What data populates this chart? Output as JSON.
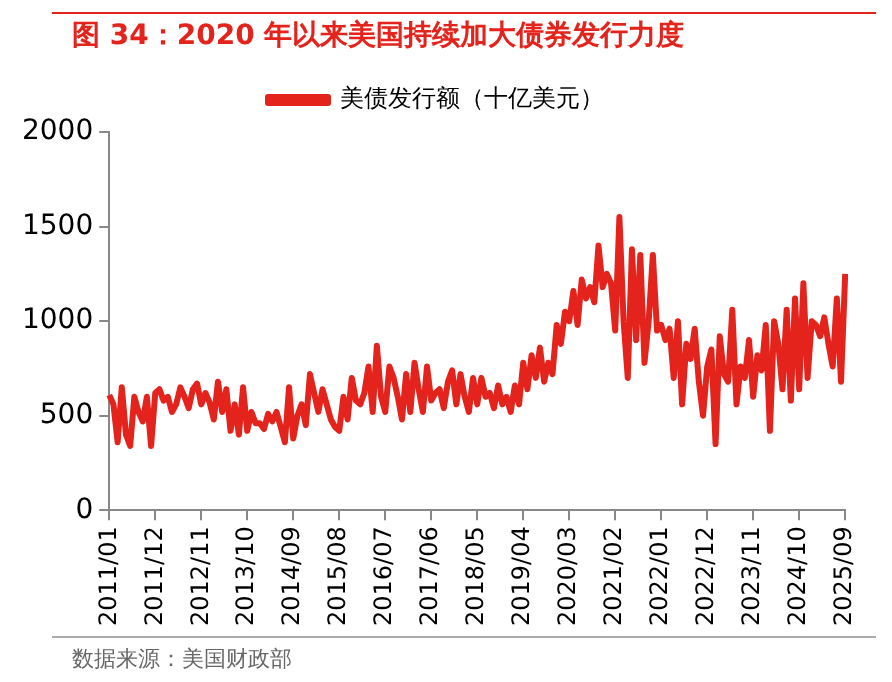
{
  "chart_data": {
    "type": "line",
    "title": "图 34：2020 年以来美国持续加大债券发行力度",
    "categories": [
      "2011/01",
      null,
      null,
      null,
      null,
      null,
      null,
      null,
      null,
      null,
      null,
      "2011/12",
      null,
      null,
      null,
      null,
      null,
      null,
      null,
      null,
      null,
      null,
      "2012/11",
      null,
      null,
      null,
      null,
      null,
      null,
      null,
      null,
      null,
      null,
      "2013/10",
      null,
      null,
      null,
      null,
      null,
      null,
      null,
      null,
      null,
      null,
      "2014/09",
      null,
      null,
      null,
      null,
      null,
      null,
      null,
      null,
      null,
      null,
      "2015/08",
      null,
      null,
      null,
      null,
      null,
      null,
      null,
      null,
      null,
      null,
      "2016/07",
      null,
      null,
      null,
      null,
      null,
      null,
      null,
      null,
      null,
      null,
      "2017/06",
      null,
      null,
      null,
      null,
      null,
      null,
      null,
      null,
      null,
      null,
      "2018/05",
      null,
      null,
      null,
      null,
      null,
      null,
      null,
      null,
      null,
      null,
      "2019/04",
      null,
      null,
      null,
      null,
      null,
      null,
      null,
      null,
      null,
      null,
      "2020/03",
      null,
      null,
      null,
      null,
      null,
      null,
      null,
      null,
      null,
      null,
      "2021/02",
      null,
      null,
      null,
      null,
      null,
      null,
      null,
      null,
      null,
      null,
      "2022/01",
      null,
      null,
      null,
      null,
      null,
      null,
      null,
      null,
      null,
      null,
      "2022/12",
      null,
      null,
      null,
      null,
      null,
      null,
      null,
      null,
      null,
      null,
      "2023/11",
      null,
      null,
      null,
      null,
      null,
      null,
      null,
      null,
      null,
      null,
      "2024/10",
      null,
      null,
      null,
      null,
      null,
      null,
      null,
      null,
      null,
      null,
      "2025/09"
    ],
    "series": [
      {
        "name": "美债发行额（十亿美元）",
        "color": "#e3231c",
        "values": [
          610,
          560,
          360,
          650,
          400,
          340,
          600,
          520,
          470,
          600,
          340,
          620,
          640,
          580,
          600,
          520,
          560,
          650,
          600,
          540,
          640,
          670,
          560,
          620,
          570,
          480,
          680,
          520,
          640,
          420,
          560,
          400,
          650,
          420,
          520,
          460,
          460,
          430,
          510,
          470,
          520,
          440,
          360,
          650,
          380,
          500,
          560,
          450,
          720,
          620,
          520,
          640,
          560,
          480,
          440,
          420,
          600,
          480,
          700,
          580,
          560,
          620,
          760,
          520,
          870,
          600,
          520,
          760,
          700,
          600,
          480,
          720,
          520,
          780,
          640,
          520,
          760,
          580,
          620,
          640,
          540,
          680,
          740,
          560,
          720,
          600,
          520,
          700,
          560,
          700,
          600,
          620,
          540,
          660,
          560,
          600,
          520,
          660,
          560,
          780,
          640,
          820,
          700,
          860,
          680,
          780,
          720,
          980,
          880,
          1050,
          1000,
          1160,
          980,
          1220,
          1120,
          1180,
          1100,
          1400,
          1180,
          1250,
          1200,
          950,
          1550,
          1000,
          700,
          1380,
          900,
          1350,
          780,
          1000,
          1350,
          950,
          980,
          900,
          960,
          700,
          1000,
          560,
          880,
          800,
          960,
          680,
          500,
          760,
          850,
          350,
          920,
          720,
          680,
          1060,
          560,
          760,
          700,
          900,
          600,
          820,
          740,
          980,
          420,
          1000,
          880,
          640,
          1060,
          580,
          1120,
          640,
          1200,
          700,
          1000,
          980,
          920,
          1020,
          880,
          760,
          1120,
          680,
          1250
        ]
      }
    ],
    "ylim": [
      0,
      2000
    ],
    "yticks": [
      0,
      500,
      1000,
      1500,
      2000
    ],
    "grid": false,
    "legend": "top",
    "marker": "none",
    "line_style": "solid",
    "annotations": [
      "数据来源：美国财政部"
    ]
  }
}
